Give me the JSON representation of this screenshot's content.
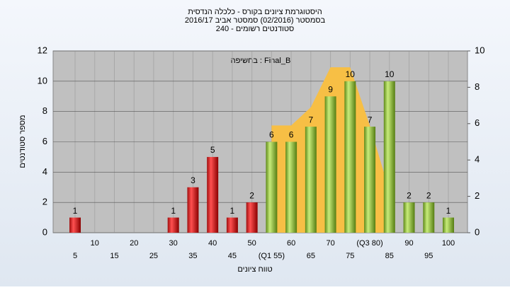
{
  "chart_data": {
    "type": "bar",
    "title": [
      "היסטוגרמת ציונים בקורס - כלכלה הנדסית",
      "בסמסטר  (02/2016)  סמסטר אביב 2016/17",
      "סטודנטים רשומים - 240"
    ],
    "annotation": "בחשיפה : Final_B",
    "x_label": "טווח ציונים",
    "y_label": "מספר סטודנטים",
    "categories": [
      "5",
      "10",
      "15",
      "20",
      "25",
      "30",
      "35",
      "40",
      "45",
      "50",
      "(Q1 55)",
      "60",
      "65",
      "70",
      "75",
      "(Q3 80)",
      "85",
      "90",
      "95",
      "100"
    ],
    "values": [
      1,
      0,
      0,
      0,
      0,
      1,
      3,
      5,
      1,
      2,
      6,
      6,
      7,
      9,
      10,
      7,
      10,
      2,
      2,
      1
    ],
    "colors": [
      "red",
      "red",
      "red",
      "red",
      "red",
      "red",
      "red",
      "red",
      "red",
      "red",
      "green",
      "green",
      "green",
      "green",
      "green",
      "green",
      "green",
      "green",
      "green",
      "green"
    ],
    "area": {
      "color": "#f7bf45",
      "axis": "y2",
      "values": [
        null,
        null,
        null,
        null,
        null,
        null,
        null,
        null,
        null,
        null,
        5.9,
        5.9,
        6.9,
        9.1,
        9.1,
        5.9,
        2.3,
        null,
        null,
        null
      ]
    },
    "ylim": [
      0,
      12
    ],
    "yticks": [
      0,
      2,
      4,
      6,
      8,
      10,
      12
    ],
    "y2lim": [
      0,
      10
    ],
    "y2ticks": [
      0,
      2,
      4,
      6,
      8,
      10
    ],
    "grid": true
  }
}
